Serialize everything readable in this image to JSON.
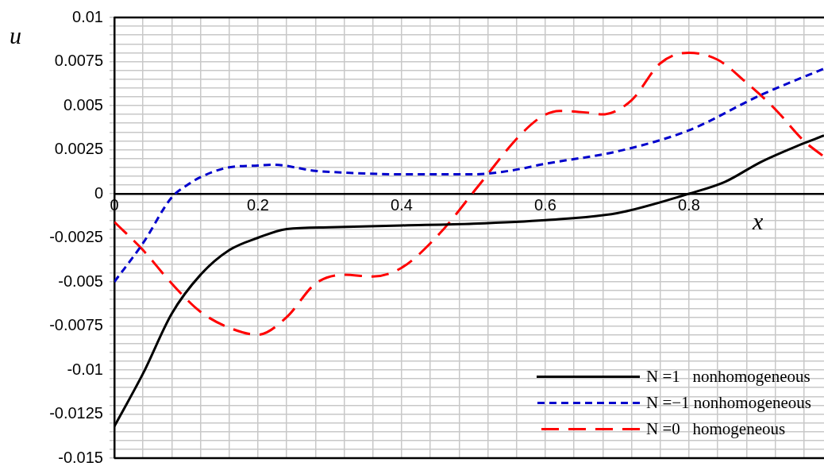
{
  "chart_data": {
    "type": "line",
    "xlabel": "x",
    "ylabel": "u",
    "xlim": [
      0,
      0.988
    ],
    "ylim": [
      -0.015,
      0.01
    ],
    "xticks": [
      0,
      {
        "value": 0.04,
        "label": null
      },
      {
        "value": 0.08,
        "label": null
      },
      {
        "value": 0.12,
        "label": null
      },
      {
        "value": 0.16,
        "label": null
      },
      0.2,
      {
        "value": 0.24,
        "label": null
      },
      {
        "value": 0.28,
        "label": null
      },
      {
        "value": 0.32,
        "label": null
      },
      {
        "value": 0.36,
        "label": null
      },
      0.4,
      {
        "value": 0.44,
        "label": null
      },
      {
        "value": 0.48,
        "label": null
      },
      {
        "value": 0.52,
        "label": null
      },
      {
        "value": 0.56,
        "label": null
      },
      0.6,
      {
        "value": 0.64,
        "label": null
      },
      {
        "value": 0.68,
        "label": null
      },
      {
        "value": 0.72,
        "label": null
      },
      {
        "value": 0.76,
        "label": null
      },
      0.8,
      {
        "value": 0.84,
        "label": null
      },
      {
        "value": 0.88,
        "label": null
      },
      {
        "value": 0.92,
        "label": null
      },
      {
        "value": 0.96,
        "label": null
      }
    ],
    "yticks": [
      -0.015,
      {
        "value": -0.0145,
        "label": null
      },
      {
        "value": -0.014,
        "label": null
      },
      {
        "value": -0.0135,
        "label": null
      },
      {
        "value": -0.013,
        "label": null
      },
      -0.0125,
      {
        "value": -0.012,
        "label": null
      },
      {
        "value": -0.0115,
        "label": null
      },
      {
        "value": -0.011,
        "label": null
      },
      {
        "value": -0.0105,
        "label": null
      },
      -0.01,
      {
        "value": -0.0095,
        "label": null
      },
      {
        "value": -0.009,
        "label": null
      },
      {
        "value": -0.0085,
        "label": null
      },
      {
        "value": -0.008,
        "label": null
      },
      -0.0075,
      {
        "value": -0.007,
        "label": null
      },
      {
        "value": -0.0065,
        "label": null
      },
      {
        "value": -0.006,
        "label": null
      },
      {
        "value": -0.0055,
        "label": null
      },
      -0.005,
      {
        "value": -0.0045,
        "label": null
      },
      {
        "value": -0.004,
        "label": null
      },
      {
        "value": -0.0035,
        "label": null
      },
      {
        "value": -0.003,
        "label": null
      },
      -0.0025,
      {
        "value": -0.002,
        "label": null
      },
      {
        "value": -0.0015,
        "label": null
      },
      {
        "value": -0.001,
        "label": null
      },
      {
        "value": -0.0005,
        "label": null
      },
      0,
      {
        "value": 0.0005,
        "label": null
      },
      {
        "value": 0.001,
        "label": null
      },
      {
        "value": 0.0015,
        "label": null
      },
      {
        "value": 0.002,
        "label": null
      },
      0.0025,
      {
        "value": 0.003,
        "label": null
      },
      {
        "value": 0.0035,
        "label": null
      },
      {
        "value": 0.004,
        "label": null
      },
      {
        "value": 0.0045,
        "label": null
      },
      0.005,
      {
        "value": 0.0055,
        "label": null
      },
      {
        "value": 0.006,
        "label": null
      },
      {
        "value": 0.0065,
        "label": null
      },
      {
        "value": 0.007,
        "label": null
      },
      0.0075,
      {
        "value": 0.008,
        "label": null
      },
      {
        "value": 0.0085,
        "label": null
      },
      {
        "value": 0.009,
        "label": null
      },
      {
        "value": 0.0095,
        "label": null
      },
      0.01
    ],
    "grid": true,
    "legend": "bottom right",
    "marker": "none",
    "series": [
      {
        "name": "N =1   nonhomogeneous",
        "color": "#000000",
        "line_style": "solid",
        "x": [
          0,
          0.04,
          0.08,
          0.12,
          0.16,
          0.2,
          0.24,
          0.3,
          0.4,
          0.5,
          0.6,
          0.7,
          0.8,
          0.85,
          0.9,
          0.95,
          0.988
        ],
        "values": [
          -0.0132,
          -0.0102,
          -0.0068,
          -0.0046,
          -0.0032,
          -0.0025,
          -0.002,
          -0.0019,
          -0.0018,
          -0.0017,
          -0.0015,
          -0.0011,
          0,
          0.00067,
          0.0018,
          0.0027,
          0.0033
        ]
      },
      {
        "name": "N =−1 nonhomogeneous",
        "color": "#0000cc",
        "line_style": "dashed",
        "x": [
          0,
          0.04,
          0.08,
          0.1,
          0.12,
          0.16,
          0.2,
          0.22,
          0.28,
          0.32,
          0.4,
          0.5,
          0.55,
          0.6,
          0.7,
          0.8,
          0.9,
          0.988
        ],
        "values": [
          -0.005,
          -0.0028,
          -0.0002,
          0.00045,
          0.00094,
          0.0015,
          0.0016,
          0.00165,
          0.0013,
          0.0012,
          0.0011,
          0.0011,
          0.0013,
          0.0017,
          0.0024,
          0.0036,
          0.0056,
          0.0071
        ]
      },
      {
        "name": "N =0   homogeneous",
        "color": "#ff0000",
        "line_style": "longdash",
        "x": [
          0,
          0.04,
          0.08,
          0.12,
          0.16,
          0.2,
          0.24,
          0.28,
          0.32,
          0.36,
          0.4,
          0.452,
          0.507,
          0.562,
          0.596,
          0.62,
          0.66,
          0.68,
          0.72,
          0.76,
          0.8,
          0.84,
          0.88,
          0.92,
          0.96,
          0.988
        ],
        "values": [
          -0.0016,
          -0.0032,
          -0.0051,
          -0.0067,
          -0.0076,
          -0.008,
          -0.007,
          -0.0051,
          -0.0046,
          -0.0047,
          -0.0042,
          -0.0023,
          0.00045,
          0.0032,
          0.0044,
          0.0047,
          0.0046,
          0.0045,
          0.0053,
          0.0074,
          0.008,
          0.0076,
          0.0063,
          0.0048,
          0.003,
          0.0021
        ]
      }
    ]
  }
}
